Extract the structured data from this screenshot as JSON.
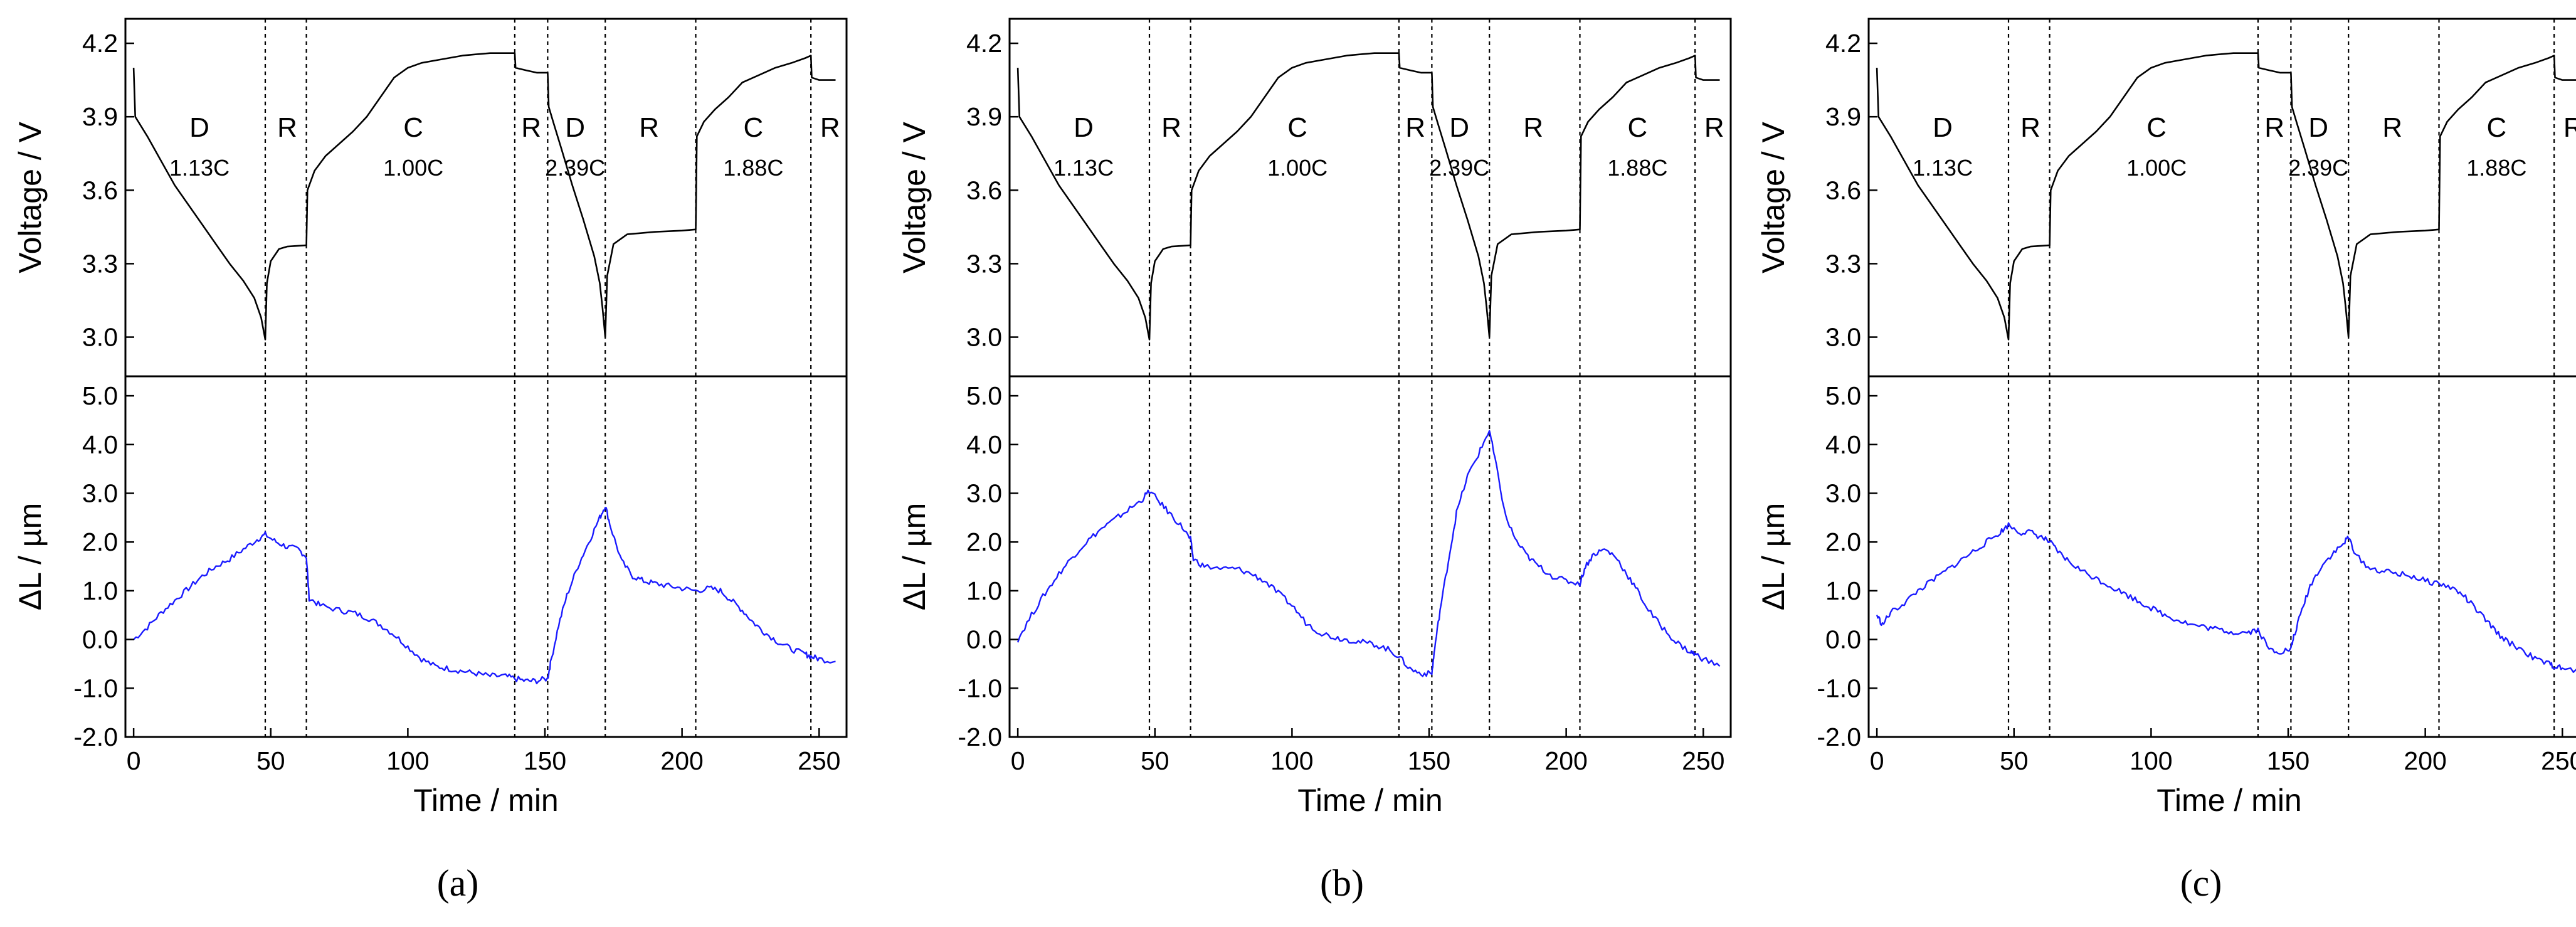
{
  "figure": {
    "panels": [
      {
        "id": "a",
        "caption": "(a)",
        "left": 200
      },
      {
        "id": "b",
        "caption": "(b)",
        "left": 1610
      },
      {
        "id": "c",
        "caption": "(c)",
        "left": 2980
      }
    ]
  },
  "chart_data": {
    "type": "line",
    "xlabel": "Time / min",
    "xlim": [
      -3,
      260
    ],
    "xticks": [
      0,
      50,
      100,
      150,
      200,
      250
    ],
    "voltage_axis": {
      "ylabel": "Voltage / V",
      "ylim": [
        2.84,
        4.3
      ],
      "ticks": [
        "3.0",
        "3.3",
        "3.6",
        "3.9",
        "4.2"
      ]
    },
    "dl_axis": {
      "ylabel": "ΔL / µm",
      "ylim": [
        -2.0,
        5.4
      ],
      "ticks": [
        "-2.0",
        "-1.0",
        "0.0",
        "1.0",
        "2.0",
        "3.0",
        "4.0",
        "5.0"
      ]
    },
    "phase_boundaries_min": [
      48,
      63,
      139,
      151,
      172,
      205,
      247
    ],
    "segments": [
      {
        "label": "D",
        "rate": "1.13C",
        "x": 24
      },
      {
        "label": "R",
        "rate": "",
        "x": 56
      },
      {
        "label": "C",
        "rate": "1.00C",
        "x": 102
      },
      {
        "label": "R",
        "rate": "",
        "x": 145
      },
      {
        "label": "D",
        "rate": "2.39C",
        "x": 161
      },
      {
        "label": "R",
        "rate": "",
        "x": 188
      },
      {
        "label": "C",
        "rate": "1.88C",
        "x": 226
      },
      {
        "label": "R",
        "rate": "",
        "x": 254
      }
    ],
    "voltage_series": {
      "name": "Voltage",
      "color": "#000000",
      "points": [
        [
          0,
          4.1
        ],
        [
          0.6,
          3.9
        ],
        [
          5,
          3.82
        ],
        [
          10,
          3.72
        ],
        [
          15,
          3.62
        ],
        [
          20,
          3.54
        ],
        [
          25,
          3.46
        ],
        [
          30,
          3.38
        ],
        [
          35,
          3.3
        ],
        [
          40,
          3.23
        ],
        [
          44,
          3.16
        ],
        [
          46.5,
          3.08
        ],
        [
          48,
          2.99
        ],
        [
          48.6,
          3.22
        ],
        [
          50,
          3.31
        ],
        [
          53,
          3.36
        ],
        [
          56,
          3.37
        ],
        [
          63,
          3.375
        ],
        [
          63.4,
          3.6
        ],
        [
          66,
          3.68
        ],
        [
          70,
          3.74
        ],
        [
          75,
          3.79
        ],
        [
          80,
          3.84
        ],
        [
          85,
          3.9
        ],
        [
          90,
          3.98
        ],
        [
          95,
          4.06
        ],
        [
          100,
          4.1
        ],
        [
          105,
          4.12
        ],
        [
          110,
          4.13
        ],
        [
          115,
          4.14
        ],
        [
          120,
          4.15
        ],
        [
          125,
          4.155
        ],
        [
          130,
          4.16
        ],
        [
          135,
          4.16
        ],
        [
          139,
          4.16
        ],
        [
          139.3,
          4.1
        ],
        [
          143,
          4.09
        ],
        [
          147,
          4.08
        ],
        [
          151,
          4.08
        ],
        [
          151.4,
          3.94
        ],
        [
          153,
          3.88
        ],
        [
          156,
          3.77
        ],
        [
          160,
          3.62
        ],
        [
          164,
          3.48
        ],
        [
          168,
          3.33
        ],
        [
          170,
          3.22
        ],
        [
          171,
          3.12
        ],
        [
          172,
          3.0
        ],
        [
          172.7,
          3.25
        ],
        [
          175,
          3.38
        ],
        [
          180,
          3.42
        ],
        [
          190,
          3.43
        ],
        [
          200,
          3.435
        ],
        [
          205,
          3.44
        ],
        [
          205.4,
          3.82
        ],
        [
          208,
          3.88
        ],
        [
          212,
          3.93
        ],
        [
          217,
          3.98
        ],
        [
          222,
          4.04
        ],
        [
          228,
          4.07
        ],
        [
          234,
          4.1
        ],
        [
          240,
          4.12
        ],
        [
          245,
          4.14
        ],
        [
          247,
          4.15
        ],
        [
          247.3,
          4.06
        ],
        [
          250,
          4.05
        ],
        [
          256,
          4.05
        ]
      ]
    },
    "dl_series": [
      {
        "panel": "a",
        "name": "ΔL",
        "color": "#1a1aff",
        "points": [
          [
            0,
            0.0
          ],
          [
            5,
            0.25
          ],
          [
            10,
            0.55
          ],
          [
            15,
            0.8
          ],
          [
            20,
            1.05
          ],
          [
            25,
            1.3
          ],
          [
            30,
            1.5
          ],
          [
            35,
            1.65
          ],
          [
            40,
            1.85
          ],
          [
            45,
            2.05
          ],
          [
            48,
            2.15
          ],
          [
            52,
            2.0
          ],
          [
            56,
            1.9
          ],
          [
            60,
            1.85
          ],
          [
            63,
            1.7
          ],
          [
            64,
            0.85
          ],
          [
            68,
            0.7
          ],
          [
            75,
            0.6
          ],
          [
            80,
            0.55
          ],
          [
            85,
            0.45
          ],
          [
            90,
            0.3
          ],
          [
            95,
            0.1
          ],
          [
            100,
            -0.15
          ],
          [
            105,
            -0.4
          ],
          [
            110,
            -0.55
          ],
          [
            115,
            -0.6
          ],
          [
            120,
            -0.65
          ],
          [
            125,
            -0.7
          ],
          [
            130,
            -0.75
          ],
          [
            135,
            -0.75
          ],
          [
            139,
            -0.8
          ],
          [
            143,
            -0.85
          ],
          [
            147,
            -0.85
          ],
          [
            151,
            -0.8
          ],
          [
            152,
            -0.5
          ],
          [
            155,
            0.3
          ],
          [
            158,
            0.9
          ],
          [
            162,
            1.5
          ],
          [
            166,
            2.0
          ],
          [
            170,
            2.5
          ],
          [
            172,
            2.75
          ],
          [
            174,
            2.3
          ],
          [
            178,
            1.6
          ],
          [
            182,
            1.3
          ],
          [
            186,
            1.2
          ],
          [
            190,
            1.15
          ],
          [
            195,
            1.1
          ],
          [
            200,
            1.05
          ],
          [
            205,
            1.0
          ],
          [
            210,
            1.05
          ],
          [
            214,
            1.0
          ],
          [
            218,
            0.8
          ],
          [
            222,
            0.6
          ],
          [
            226,
            0.35
          ],
          [
            230,
            0.15
          ],
          [
            235,
            -0.05
          ],
          [
            240,
            -0.2
          ],
          [
            245,
            -0.3
          ],
          [
            247,
            -0.35
          ],
          [
            250,
            -0.4
          ],
          [
            256,
            -0.45
          ]
        ]
      },
      {
        "panel": "b",
        "name": "ΔL",
        "color": "#1a1aff",
        "points": [
          [
            0,
            0.0
          ],
          [
            5,
            0.5
          ],
          [
            10,
            0.95
          ],
          [
            15,
            1.35
          ],
          [
            20,
            1.7
          ],
          [
            25,
            2.0
          ],
          [
            30,
            2.25
          ],
          [
            35,
            2.45
          ],
          [
            40,
            2.65
          ],
          [
            45,
            2.85
          ],
          [
            48,
            3.05
          ],
          [
            52,
            2.8
          ],
          [
            56,
            2.55
          ],
          [
            60,
            2.3
          ],
          [
            63,
            2.05
          ],
          [
            64,
            1.65
          ],
          [
            68,
            1.5
          ],
          [
            75,
            1.45
          ],
          [
            80,
            1.45
          ],
          [
            85,
            1.35
          ],
          [
            90,
            1.2
          ],
          [
            95,
            0.95
          ],
          [
            100,
            0.7
          ],
          [
            105,
            0.35
          ],
          [
            110,
            0.15
          ],
          [
            115,
            0.05
          ],
          [
            120,
            0.0
          ],
          [
            125,
            -0.05
          ],
          [
            130,
            -0.1
          ],
          [
            135,
            -0.2
          ],
          [
            139,
            -0.35
          ],
          [
            143,
            -0.6
          ],
          [
            147,
            -0.7
          ],
          [
            151,
            -0.7
          ],
          [
            152,
            -0.2
          ],
          [
            154,
            0.6
          ],
          [
            157,
            1.6
          ],
          [
            160,
            2.6
          ],
          [
            164,
            3.35
          ],
          [
            168,
            3.8
          ],
          [
            172,
            4.3
          ],
          [
            174,
            3.7
          ],
          [
            178,
            2.5
          ],
          [
            182,
            2.0
          ],
          [
            186,
            1.7
          ],
          [
            190,
            1.5
          ],
          [
            195,
            1.3
          ],
          [
            200,
            1.2
          ],
          [
            205,
            1.15
          ],
          [
            207,
            1.5
          ],
          [
            210,
            1.75
          ],
          [
            214,
            1.85
          ],
          [
            218,
            1.7
          ],
          [
            222,
            1.35
          ],
          [
            226,
            1.0
          ],
          [
            230,
            0.6
          ],
          [
            235,
            0.25
          ],
          [
            240,
            -0.05
          ],
          [
            245,
            -0.25
          ],
          [
            247,
            -0.3
          ],
          [
            250,
            -0.4
          ],
          [
            256,
            -0.55
          ]
        ]
      },
      {
        "panel": "c",
        "name": "ΔL",
        "color": "#1a1aff",
        "points": [
          [
            0,
            0.5
          ],
          [
            2,
            0.3
          ],
          [
            5,
            0.55
          ],
          [
            10,
            0.75
          ],
          [
            15,
            1.0
          ],
          [
            20,
            1.2
          ],
          [
            25,
            1.4
          ],
          [
            30,
            1.6
          ],
          [
            35,
            1.8
          ],
          [
            40,
            2.0
          ],
          [
            45,
            2.2
          ],
          [
            48,
            2.35
          ],
          [
            52,
            2.2
          ],
          [
            56,
            2.2
          ],
          [
            60,
            2.1
          ],
          [
            63,
            2.0
          ],
          [
            66,
            1.8
          ],
          [
            70,
            1.6
          ],
          [
            75,
            1.4
          ],
          [
            80,
            1.25
          ],
          [
            85,
            1.1
          ],
          [
            90,
            0.95
          ],
          [
            95,
            0.8
          ],
          [
            100,
            0.65
          ],
          [
            105,
            0.5
          ],
          [
            110,
            0.4
          ],
          [
            115,
            0.3
          ],
          [
            120,
            0.25
          ],
          [
            125,
            0.2
          ],
          [
            130,
            0.15
          ],
          [
            135,
            0.15
          ],
          [
            139,
            0.2
          ],
          [
            143,
            -0.2
          ],
          [
            147,
            -0.25
          ],
          [
            151,
            -0.2
          ],
          [
            152,
            0.05
          ],
          [
            155,
            0.6
          ],
          [
            158,
            1.1
          ],
          [
            162,
            1.5
          ],
          [
            166,
            1.75
          ],
          [
            170,
            1.95
          ],
          [
            172,
            2.1
          ],
          [
            175,
            1.7
          ],
          [
            180,
            1.45
          ],
          [
            185,
            1.4
          ],
          [
            190,
            1.35
          ],
          [
            195,
            1.3
          ],
          [
            200,
            1.2
          ],
          [
            205,
            1.15
          ],
          [
            210,
            1.05
          ],
          [
            214,
            0.9
          ],
          [
            218,
            0.65
          ],
          [
            222,
            0.4
          ],
          [
            226,
            0.15
          ],
          [
            230,
            -0.05
          ],
          [
            235,
            -0.2
          ],
          [
            240,
            -0.4
          ],
          [
            245,
            -0.5
          ],
          [
            247,
            -0.55
          ],
          [
            250,
            -0.6
          ],
          [
            256,
            -0.65
          ]
        ]
      }
    ]
  }
}
